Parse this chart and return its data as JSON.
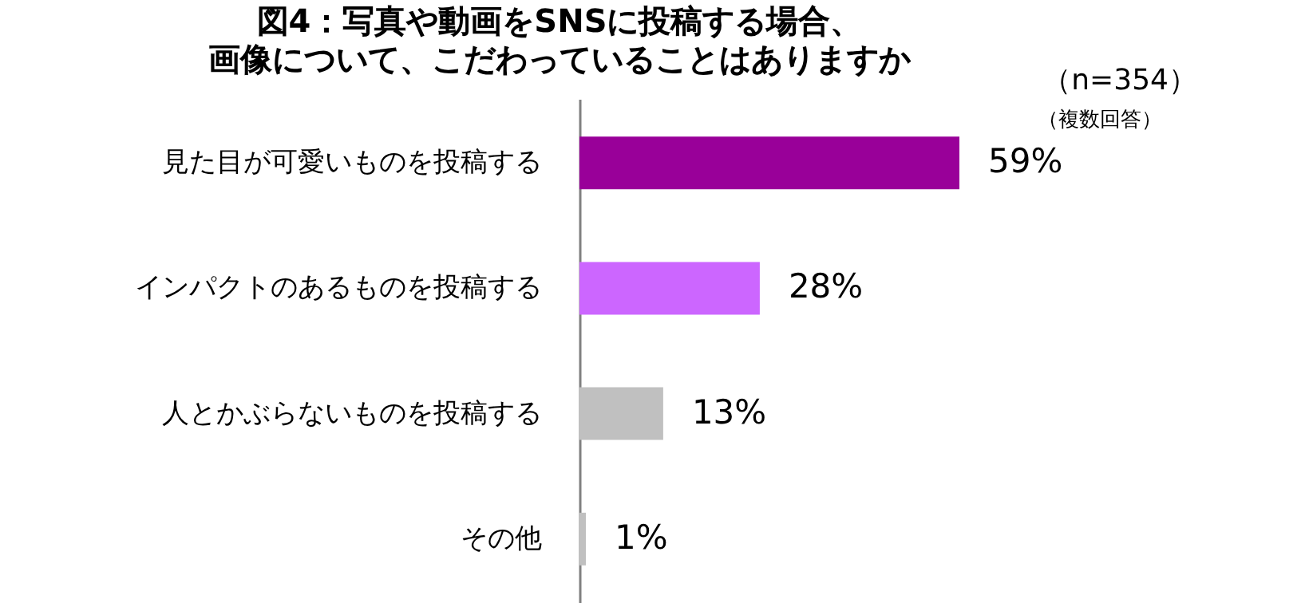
{
  "chart_data": {
    "type": "bar",
    "orientation": "horizontal",
    "title": "図4：写真や動画をSNSに投稿する場合、画像について、こだわっていることはありますか",
    "categories": [
      "見た目が可愛いものを投稿する",
      "インパクトのあるものを投稿する",
      "人とかぶらないものを投稿する",
      "その他"
    ],
    "values": [
      59,
      28,
      13,
      1
    ],
    "colors": [
      "#990099",
      "#cc66ff",
      "#c0c0c0",
      "#c0c0c0"
    ],
    "value_labels": [
      "59%",
      "28%",
      "13%",
      "1%"
    ],
    "annotations": [
      "（n=354）",
      "（複数回答）"
    ],
    "grid": false,
    "legend": false
  }
}
